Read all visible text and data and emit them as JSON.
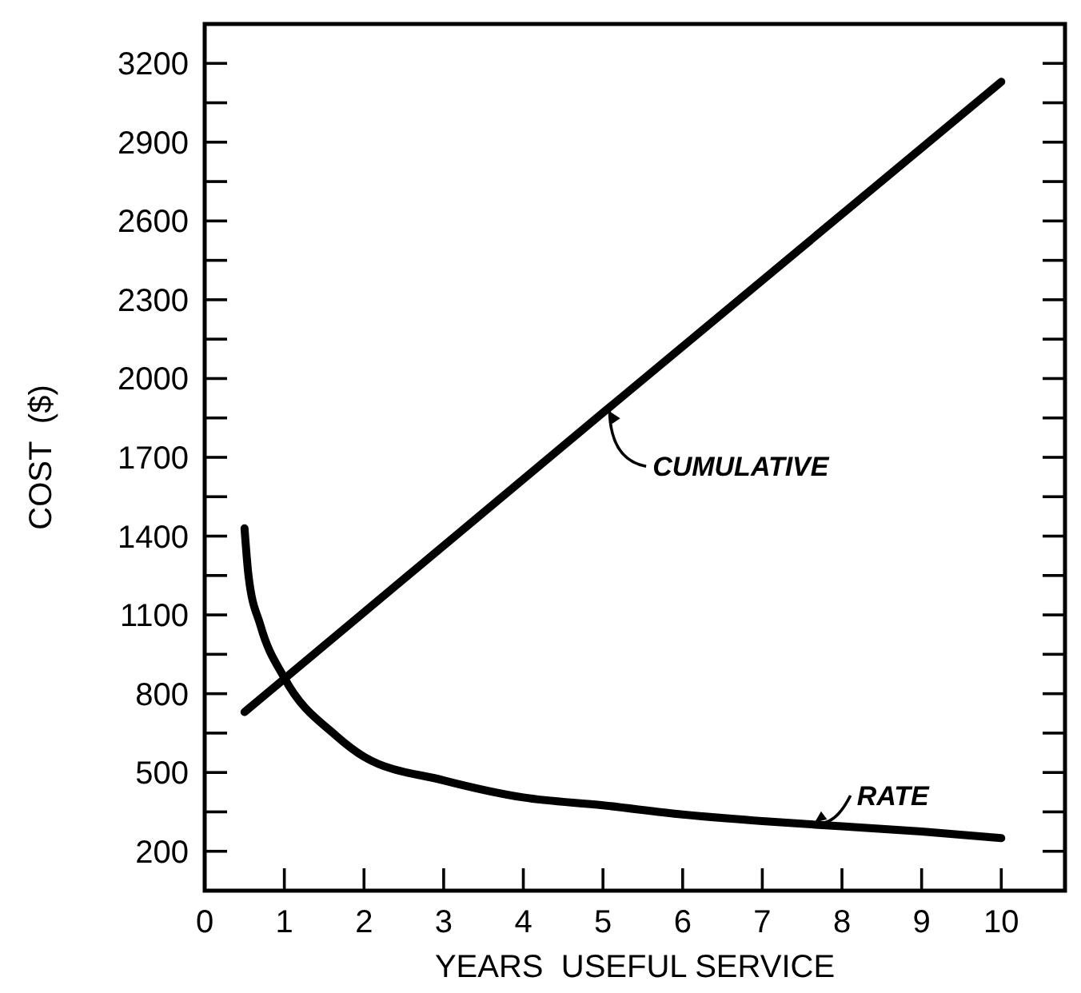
{
  "chart_data": {
    "type": "line",
    "xlabel": "YEARS  USEFUL SERVICE",
    "ylabel": "COST  ($)",
    "xlim": [
      0,
      10.8
    ],
    "xticks": [
      0,
      1,
      2,
      3,
      4,
      5,
      6,
      7,
      8,
      9,
      10
    ],
    "ylim": [
      50,
      3350
    ],
    "yticks": [
      200,
      {
        "value": 350,
        "label": null
      },
      500,
      {
        "value": 650,
        "label": null
      },
      800,
      {
        "value": 950,
        "label": null
      },
      1100,
      {
        "value": 1250,
        "label": null
      },
      1400,
      {
        "value": 1550,
        "label": null
      },
      1700,
      {
        "value": 1850,
        "label": null
      },
      2000,
      {
        "value": 2150,
        "label": null
      },
      2300,
      {
        "value": 2450,
        "label": null
      },
      2600,
      {
        "value": 2750,
        "label": null
      },
      2900,
      {
        "value": 3050,
        "label": null
      },
      3200
    ],
    "grid": false,
    "marker": "none",
    "line_style": "solid",
    "series": [
      {
        "name": "CUMULATIVE",
        "color": "#000000",
        "x": [
          0.5,
          5,
          10
        ],
        "values": [
          730,
          1870,
          3130
        ]
      },
      {
        "name": "RATE",
        "color": "#000000",
        "x": [
          0.5,
          0.55,
          0.7,
          1,
          1.65,
          2,
          3,
          4,
          5,
          6,
          7,
          8,
          9,
          10
        ],
        "values": [
          1430,
          1250,
          1060,
          860,
          640,
          560,
          470,
          405,
          375,
          340,
          315,
          295,
          275,
          250
        ]
      }
    ]
  }
}
